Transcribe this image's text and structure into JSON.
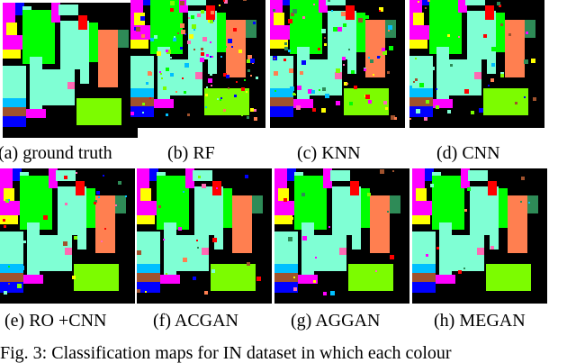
{
  "figure": {
    "panels": [
      {
        "id": "a",
        "caption": "(a) ground truth",
        "noise": 0
      },
      {
        "id": "b",
        "caption": "(b) RF",
        "noise": 0.16
      },
      {
        "id": "c",
        "caption": "(c) KNN",
        "noise": 0.12
      },
      {
        "id": "d",
        "caption": "(d) CNN",
        "noise": 0.06
      },
      {
        "id": "e",
        "caption": "(e) RO +CNN",
        "noise": 0.04
      },
      {
        "id": "f",
        "caption": "(f) ACGAN",
        "noise": 0.03
      },
      {
        "id": "g",
        "caption": "(g) AGGAN",
        "noise": 0.025
      },
      {
        "id": "h",
        "caption": "(h) MEGAN",
        "noise": 0.015
      }
    ],
    "caption": "Fig. 3: Classification maps for IN dataset in which each colour",
    "class_colors": [
      "#00ff00",
      "#ff00ff",
      "#7fffd4",
      "#ff7f50",
      "#2e8b57",
      "#0000ff",
      "#ffff00",
      "#ff0000",
      "#7cfc00",
      "#a0522d",
      "#00bfff",
      "#ff69b4"
    ]
  }
}
